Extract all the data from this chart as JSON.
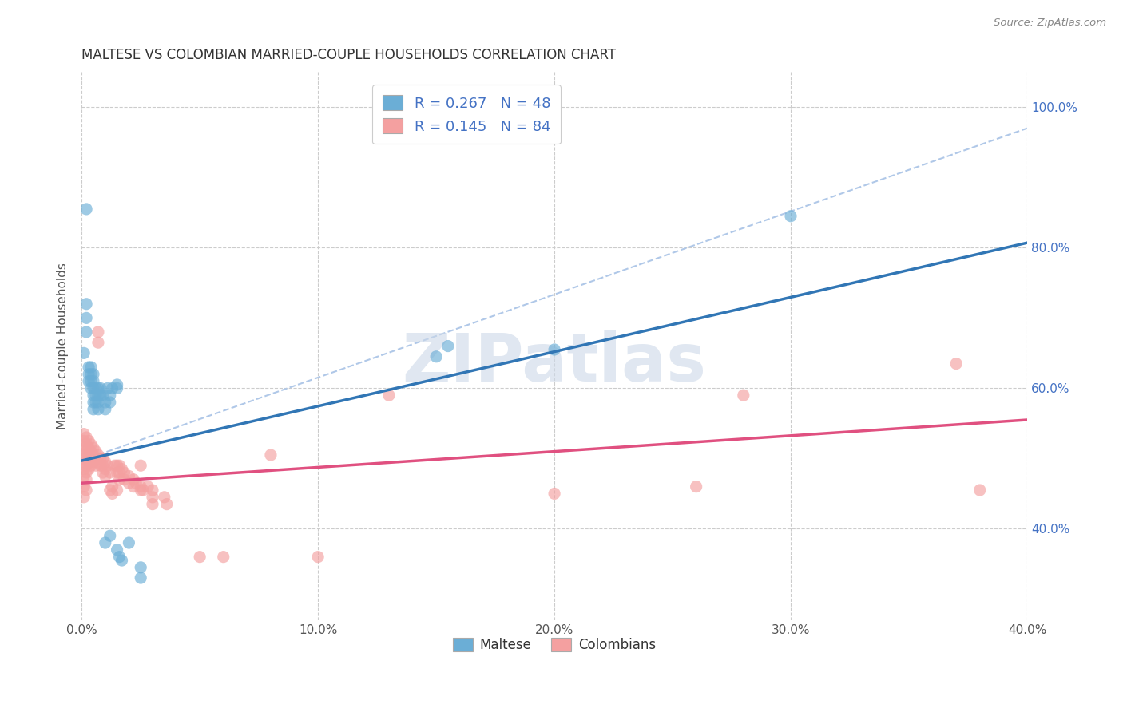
{
  "title": "MALTESE VS COLOMBIAN MARRIED-COUPLE HOUSEHOLDS CORRELATION CHART",
  "source": "Source: ZipAtlas.com",
  "ylabel": "Married-couple Households",
  "xlim": [
    0.0,
    0.4
  ],
  "ylim": [
    0.27,
    1.05
  ],
  "maltese_R": 0.267,
  "maltese_N": 48,
  "colombian_R": 0.145,
  "colombian_N": 84,
  "maltese_color": "#6baed6",
  "colombian_color": "#f4a0a0",
  "trendline_maltese_color": "#3176b5",
  "trendline_colombian_color": "#e05080",
  "dashed_line_color": "#b0c8e8",
  "maltese_trendline": [
    [
      0.0,
      0.497
    ],
    [
      0.4,
      0.807
    ]
  ],
  "colombian_trendline": [
    [
      0.0,
      0.465
    ],
    [
      0.4,
      0.555
    ]
  ],
  "dashed_ref_line": [
    [
      0.0,
      0.497
    ],
    [
      0.4,
      0.97
    ]
  ],
  "watermark_text": "ZIPatlas",
  "watermark_color": "#ccd8e8",
  "maltese_scatter": [
    [
      0.001,
      0.65
    ],
    [
      0.002,
      0.72
    ],
    [
      0.002,
      0.7
    ],
    [
      0.002,
      0.68
    ],
    [
      0.003,
      0.63
    ],
    [
      0.003,
      0.62
    ],
    [
      0.003,
      0.61
    ],
    [
      0.004,
      0.63
    ],
    [
      0.004,
      0.62
    ],
    [
      0.004,
      0.61
    ],
    [
      0.004,
      0.6
    ],
    [
      0.005,
      0.62
    ],
    [
      0.005,
      0.61
    ],
    [
      0.005,
      0.6
    ],
    [
      0.005,
      0.59
    ],
    [
      0.005,
      0.58
    ],
    [
      0.005,
      0.57
    ],
    [
      0.006,
      0.6
    ],
    [
      0.006,
      0.59
    ],
    [
      0.006,
      0.58
    ],
    [
      0.007,
      0.6
    ],
    [
      0.007,
      0.59
    ],
    [
      0.007,
      0.58
    ],
    [
      0.007,
      0.57
    ],
    [
      0.008,
      0.6
    ],
    [
      0.008,
      0.59
    ],
    [
      0.009,
      0.59
    ],
    [
      0.01,
      0.58
    ],
    [
      0.01,
      0.57
    ],
    [
      0.011,
      0.6
    ],
    [
      0.012,
      0.59
    ],
    [
      0.012,
      0.58
    ],
    [
      0.013,
      0.6
    ],
    [
      0.015,
      0.605
    ],
    [
      0.015,
      0.6
    ],
    [
      0.015,
      0.37
    ],
    [
      0.016,
      0.36
    ],
    [
      0.017,
      0.355
    ],
    [
      0.01,
      0.38
    ],
    [
      0.012,
      0.39
    ],
    [
      0.02,
      0.38
    ],
    [
      0.025,
      0.345
    ],
    [
      0.025,
      0.33
    ],
    [
      0.15,
      0.645
    ],
    [
      0.155,
      0.66
    ],
    [
      0.2,
      0.655
    ],
    [
      0.3,
      0.845
    ],
    [
      0.002,
      0.855
    ]
  ],
  "colombian_scatter": [
    [
      0.001,
      0.535
    ],
    [
      0.001,
      0.525
    ],
    [
      0.001,
      0.515
    ],
    [
      0.001,
      0.505
    ],
    [
      0.001,
      0.495
    ],
    [
      0.001,
      0.485
    ],
    [
      0.001,
      0.475
    ],
    [
      0.001,
      0.46
    ],
    [
      0.001,
      0.445
    ],
    [
      0.002,
      0.53
    ],
    [
      0.002,
      0.52
    ],
    [
      0.002,
      0.51
    ],
    [
      0.002,
      0.5
    ],
    [
      0.002,
      0.49
    ],
    [
      0.002,
      0.48
    ],
    [
      0.002,
      0.47
    ],
    [
      0.002,
      0.455
    ],
    [
      0.003,
      0.525
    ],
    [
      0.003,
      0.515
    ],
    [
      0.003,
      0.505
    ],
    [
      0.003,
      0.495
    ],
    [
      0.003,
      0.485
    ],
    [
      0.004,
      0.52
    ],
    [
      0.004,
      0.51
    ],
    [
      0.004,
      0.5
    ],
    [
      0.004,
      0.49
    ],
    [
      0.005,
      0.515
    ],
    [
      0.005,
      0.505
    ],
    [
      0.005,
      0.495
    ],
    [
      0.006,
      0.51
    ],
    [
      0.006,
      0.5
    ],
    [
      0.006,
      0.49
    ],
    [
      0.007,
      0.505
    ],
    [
      0.007,
      0.495
    ],
    [
      0.007,
      0.68
    ],
    [
      0.007,
      0.665
    ],
    [
      0.008,
      0.5
    ],
    [
      0.008,
      0.49
    ],
    [
      0.009,
      0.5
    ],
    [
      0.009,
      0.49
    ],
    [
      0.009,
      0.48
    ],
    [
      0.01,
      0.495
    ],
    [
      0.01,
      0.485
    ],
    [
      0.01,
      0.475
    ],
    [
      0.011,
      0.49
    ],
    [
      0.012,
      0.48
    ],
    [
      0.012,
      0.455
    ],
    [
      0.013,
      0.46
    ],
    [
      0.013,
      0.45
    ],
    [
      0.014,
      0.49
    ],
    [
      0.015,
      0.49
    ],
    [
      0.015,
      0.48
    ],
    [
      0.015,
      0.455
    ],
    [
      0.016,
      0.49
    ],
    [
      0.016,
      0.48
    ],
    [
      0.016,
      0.47
    ],
    [
      0.017,
      0.485
    ],
    [
      0.018,
      0.48
    ],
    [
      0.018,
      0.47
    ],
    [
      0.02,
      0.475
    ],
    [
      0.02,
      0.465
    ],
    [
      0.022,
      0.47
    ],
    [
      0.022,
      0.46
    ],
    [
      0.023,
      0.465
    ],
    [
      0.025,
      0.49
    ],
    [
      0.025,
      0.46
    ],
    [
      0.025,
      0.455
    ],
    [
      0.026,
      0.455
    ],
    [
      0.028,
      0.46
    ],
    [
      0.03,
      0.455
    ],
    [
      0.03,
      0.445
    ],
    [
      0.03,
      0.435
    ],
    [
      0.035,
      0.445
    ],
    [
      0.036,
      0.435
    ],
    [
      0.05,
      0.36
    ],
    [
      0.06,
      0.36
    ],
    [
      0.08,
      0.505
    ],
    [
      0.1,
      0.36
    ],
    [
      0.13,
      0.59
    ],
    [
      0.2,
      0.45
    ],
    [
      0.26,
      0.46
    ],
    [
      0.28,
      0.59
    ],
    [
      0.37,
      0.635
    ],
    [
      0.38,
      0.455
    ]
  ]
}
